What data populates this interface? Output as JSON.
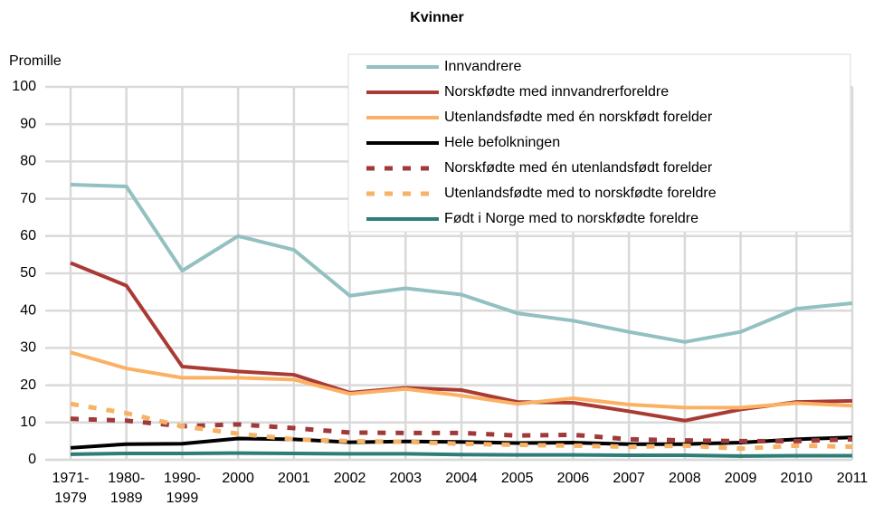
{
  "chart_data": {
    "type": "line",
    "title": "Kvinner",
    "y_label": "Promille",
    "categories": [
      "1971-1979",
      "1980-1989",
      "1990-1999",
      "2000",
      "2001",
      "2002",
      "2003",
      "2004",
      "2005",
      "2006",
      "2007",
      "2008",
      "2009",
      "2010",
      "2011"
    ],
    "ylim": [
      0,
      100
    ],
    "yticks": [
      0,
      10,
      20,
      30,
      40,
      50,
      60,
      70,
      80,
      90,
      100
    ],
    "grid": true,
    "legend": "top-right",
    "series": [
      {
        "name": "Innvandrere",
        "color": "#93c0c0",
        "style": "solid",
        "values": [
          73.8,
          73.3,
          50.7,
          60,
          56.3,
          44,
          46,
          44.3,
          39.3,
          37.3,
          34.3,
          31.6,
          34.3,
          40.5,
          42
        ]
      },
      {
        "name": "Norskfødte med innvandrerforeldre",
        "color": "#a93a34",
        "style": "solid",
        "values": [
          52.8,
          46.7,
          25,
          23.7,
          22.8,
          18,
          19.3,
          18.7,
          15.5,
          15.3,
          13,
          10.5,
          13.5,
          15.5,
          15.8
        ]
      },
      {
        "name": "Utenlandsfødte med én norskfødt forelder",
        "color": "#fbb163",
        "style": "solid",
        "values": [
          28.8,
          24.5,
          22,
          22,
          21.5,
          17.7,
          19,
          17.2,
          15,
          16.5,
          14.8,
          14,
          14,
          15.2,
          14.5
        ]
      },
      {
        "name": "Hele befolkningen",
        "color": "#000000",
        "style": "solid",
        "values": [
          3.2,
          4.2,
          4.3,
          5.7,
          5.5,
          4.7,
          4.9,
          4.8,
          4.5,
          4.6,
          4.2,
          4.2,
          4.6,
          5.5,
          6
        ]
      },
      {
        "name": "Norskfødte med én utenlandsfødt forelder",
        "color": "#a0393a",
        "style": "dotted",
        "values": [
          11,
          10.5,
          9,
          9.5,
          8.5,
          7.3,
          7.2,
          7.2,
          6.5,
          6.7,
          5.5,
          5.2,
          5,
          5,
          5.5
        ]
      },
      {
        "name": "Utenlandsfødte med to norskfødte foreldre",
        "color": "#f6b266",
        "style": "dotted",
        "values": [
          15,
          12.5,
          9,
          7,
          5.5,
          5,
          4.8,
          4.3,
          4,
          3.8,
          3.5,
          3.8,
          3,
          3.8,
          3.5
        ]
      },
      {
        "name": "Født i Norge med to norskfødte foreldre",
        "color": "#2e7d76",
        "style": "solid",
        "values": [
          1.5,
          1.7,
          1.7,
          1.8,
          1.7,
          1.6,
          1.6,
          1.4,
          1.3,
          1.3,
          1.2,
          1.2,
          1.0,
          1.1,
          1.1
        ]
      }
    ]
  }
}
